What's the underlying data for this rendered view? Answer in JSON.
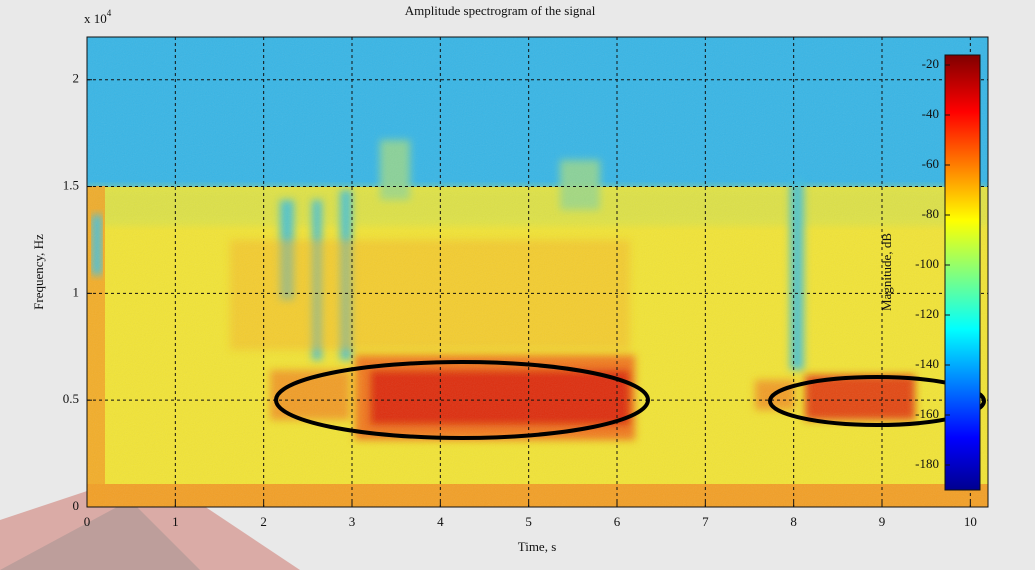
{
  "chart_data": {
    "type": "spectrogram",
    "title": "Amplitude spectrogram of the signal",
    "x_label": "Time, s",
    "y_label": "Frequency, Hz",
    "y_multiplier": {
      "base": "x 10",
      "exponent": "4"
    },
    "xlim": [
      0,
      10.2
    ],
    "xticks": [
      0,
      1,
      2,
      3,
      4,
      5,
      6,
      7,
      8,
      9,
      10
    ],
    "ylim": [
      0,
      2.2
    ],
    "yticks": [
      0,
      0.5,
      1,
      1.5,
      2
    ],
    "grid": true,
    "colormap": "jet",
    "colorbar": {
      "label": "Magnitude, dB",
      "lim": [
        -190,
        -16
      ],
      "ticks": [
        -20,
        -40,
        -60,
        -80,
        -100,
        -120,
        -140,
        -160,
        -180
      ]
    }
  }
}
